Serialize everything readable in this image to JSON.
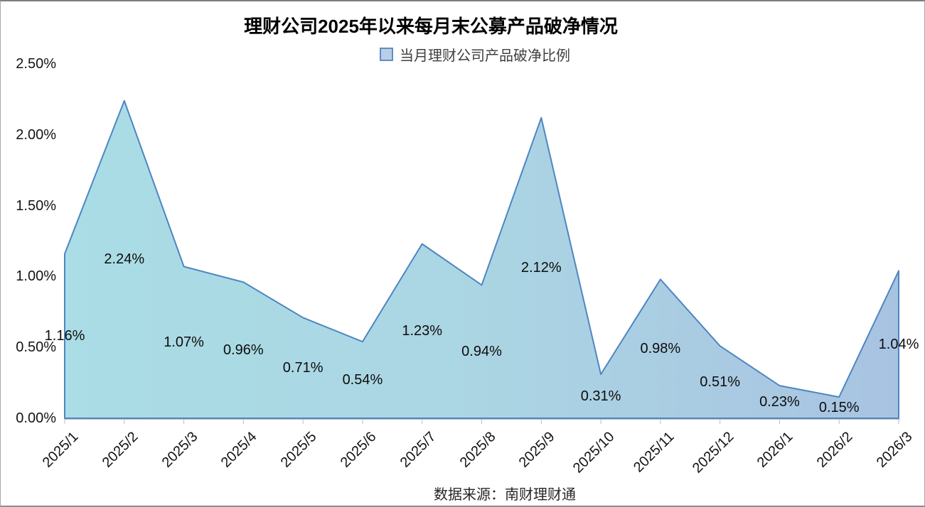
{
  "chart_data": {
    "type": "area",
    "title": "理财公司2025年以来每月末公募产品破净情况",
    "series_name": "当月理财公司产品破净比例",
    "categories": [
      "2025/1",
      "2025/2",
      "2025/3",
      "2025/4",
      "2025/5",
      "2025/6",
      "2025/7",
      "2025/8",
      "2025/9",
      "2025/10",
      "2025/11",
      "2025/12",
      "2026/1",
      "2026/2",
      "2026/3"
    ],
    "values": [
      1.16,
      2.24,
      1.07,
      0.96,
      0.71,
      0.54,
      1.23,
      0.94,
      2.12,
      0.31,
      0.98,
      0.51,
      0.23,
      0.15,
      1.04
    ],
    "labels": [
      "1.16%",
      "2.24%",
      "1.07%",
      "0.96%",
      "0.71%",
      "0.54%",
      "1.23%",
      "0.94%",
      "2.12%",
      "0.31%",
      "0.98%",
      "0.51%",
      "0.23%",
      "0.15%",
      "1.04%"
    ],
    "y_ticks": [
      "0.00%",
      "0.50%",
      "1.00%",
      "1.50%",
      "2.00%",
      "2.50%"
    ],
    "ylim": [
      0,
      2.5
    ],
    "unit": "%",
    "grid": false,
    "legend_position": "top",
    "xlabel": "",
    "ylabel": ""
  },
  "source_note": "数据来源：南财理财通",
  "colors": {
    "area_left": "#aadde5",
    "area_mid": "#abd5e3",
    "area_right": "#a8c3e2",
    "line": "#4e86c2",
    "legend_fill": "#b9cfe8",
    "legend_border": "#5e8fc4",
    "axis": "#bfbfbf"
  }
}
